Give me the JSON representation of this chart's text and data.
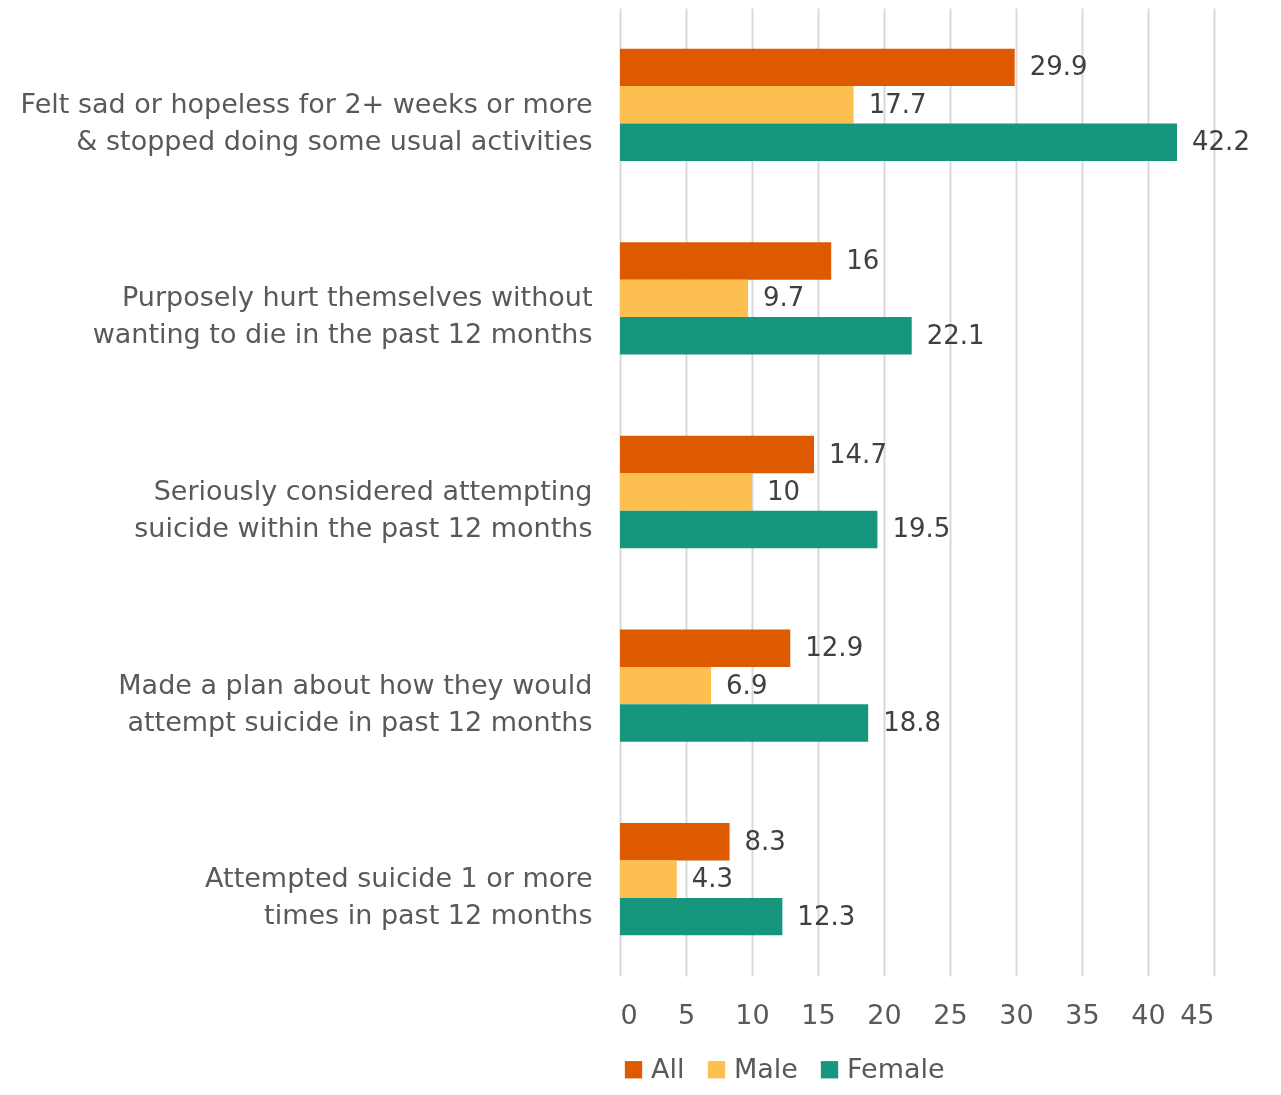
{
  "chart_data": {
    "type": "bar",
    "orientation": "horizontal",
    "categories": [
      "Felt sad or hopeless for 2+ weeks or more & stopped doing some usual activities",
      "Purposely hurt themselves without wanting to die in the past 12 months",
      "Seriously considered attempting suicide within the past 12 months",
      "Made a plan about how they would attempt suicide in past 12 months",
      "Attempted suicide 1 or more times in past 12 months"
    ],
    "series": [
      {
        "name": "All",
        "color": "#dd5a00",
        "values": [
          29.9,
          16,
          14.7,
          12.9,
          8.3
        ]
      },
      {
        "name": "Male",
        "color": "#fdbf4f",
        "values": [
          17.7,
          9.7,
          10,
          6.9,
          4.3
        ]
      },
      {
        "name": "Female",
        "color": "#16967c",
        "values": [
          42.2,
          22.1,
          19.5,
          18.8,
          12.3
        ]
      }
    ],
    "xlim": [
      0,
      45
    ],
    "xticks": [
      0,
      5,
      10,
      15,
      20,
      25,
      30,
      35,
      40,
      45
    ],
    "grid": "x",
    "legend": "bottom",
    "data_labels": true
  }
}
